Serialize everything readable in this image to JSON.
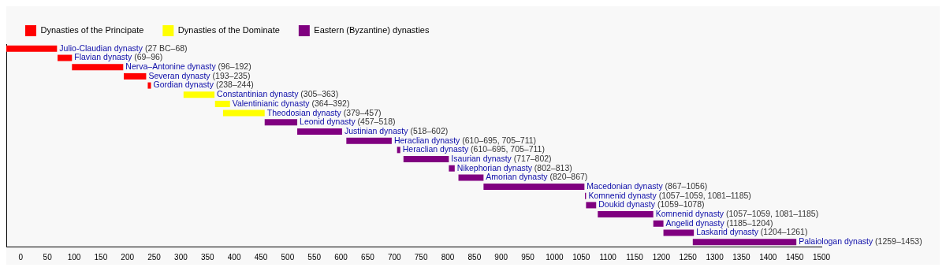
{
  "chart_data": {
    "type": "bar",
    "orientation": "horizontal",
    "legend": "top left",
    "tick_labels": "x",
    "grid": false,
    "categories": [
      "Julio-Claudian dynasty",
      "Flavian dynasty",
      "Nerva–Antonine dynasty",
      "Severan dynasty",
      "Gordian dynasty",
      "Constantinian dynasty",
      "Valentinianic dynasty",
      "Theodosian dynasty",
      "Leonid dynasty",
      "Justinian dynasty",
      "Heraclian dynasty",
      "Heraclian dynasty",
      "Isaurian dynasty",
      "Nikephorian dynasty",
      "Amorian dynasty",
      "Macedonian dynasty",
      "Komnenid dynasty",
      "Doukid dynasty",
      "Komnenid dynasty",
      "Angelid dynasty",
      "Laskarid dynasty",
      "Palaiologan dynasty"
    ],
    "value_labels": [
      "(27 BC–68)",
      "(69–96)",
      "(96–192)",
      "(193–235)",
      "(238–244)",
      "(305–363)",
      "(364–392)",
      "(379–457)",
      "(457–518)",
      "(518–602)",
      "(610–695, 705–711)",
      "(610–695, 705–711)",
      "(717–802)",
      "(802–813)",
      "(820–867)",
      "(867–1056)",
      "(1057–1059, 1081–1185)",
      "(1059–1078)",
      "(1057–1059, 1081–1185)",
      "(1185–1204)",
      "(1204–1261)",
      "(1259–1453)"
    ],
    "xlim": [
      -27,
      1500
    ],
    "xticks": [
      0,
      50,
      100,
      150,
      200,
      250,
      300,
      350,
      400,
      450,
      500,
      550,
      600,
      650,
      700,
      750,
      800,
      850,
      900,
      950,
      1000,
      1050,
      1100,
      1150,
      1200,
      1250,
      1300,
      1350,
      1400,
      1450,
      1500
    ],
    "series": [
      {
        "name": "Dynasties of the Principate",
        "color": "#ff0000",
        "base": [
          -27,
          69,
          96,
          193,
          238,
          null,
          null,
          null,
          null,
          null,
          null,
          null,
          null,
          null,
          null,
          null,
          null,
          null,
          null,
          null,
          null,
          null
        ],
        "values": [
          95,
          27,
          96,
          42,
          6,
          null,
          null,
          null,
          null,
          null,
          null,
          null,
          null,
          null,
          null,
          null,
          null,
          null,
          null,
          null,
          null,
          null
        ]
      },
      {
        "name": "Dynasties of the Dominate",
        "color": "#ffff00",
        "base": [
          null,
          null,
          null,
          null,
          null,
          305,
          364,
          379,
          null,
          null,
          null,
          null,
          null,
          null,
          null,
          null,
          null,
          null,
          null,
          null,
          null,
          null
        ],
        "values": [
          null,
          null,
          null,
          null,
          null,
          58,
          28,
          78,
          null,
          null,
          null,
          null,
          null,
          null,
          null,
          null,
          null,
          null,
          null,
          null,
          null,
          null
        ]
      },
      {
        "name": "Eastern (Byzantine) dynasties",
        "color": "#800080",
        "base": [
          null,
          null,
          null,
          null,
          null,
          null,
          null,
          null,
          457,
          518,
          610,
          705,
          717,
          802,
          820,
          867,
          1057,
          1059,
          1081,
          1185,
          1204,
          1259
        ],
        "values": [
          null,
          null,
          null,
          null,
          null,
          null,
          null,
          null,
          61,
          84,
          85,
          6,
          85,
          11,
          47,
          189,
          2,
          19,
          104,
          19,
          57,
          194
        ]
      }
    ]
  }
}
